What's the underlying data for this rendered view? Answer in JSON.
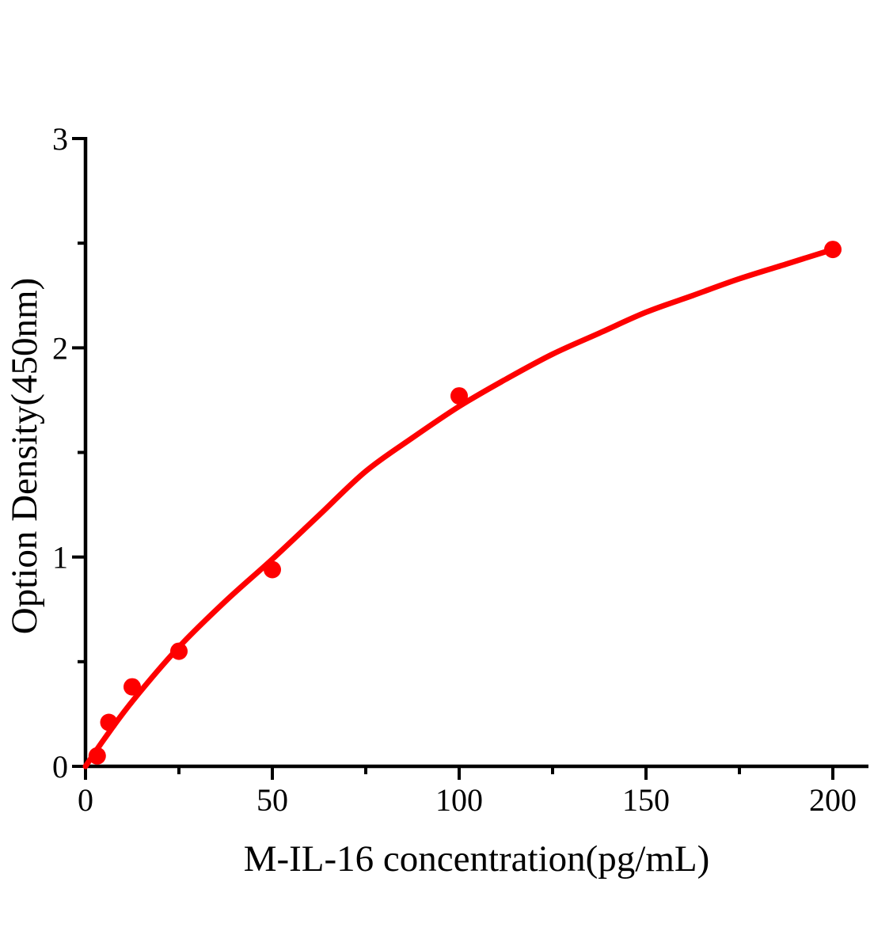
{
  "chart_data": {
    "type": "scatter",
    "title": "",
    "xlabel": "M-IL-16 concentration(pg/mL)",
    "ylabel": "Option Density(450nm)",
    "xlim": [
      0,
      209.5
    ],
    "ylim": [
      0,
      3
    ],
    "x_major_ticks": [
      0,
      50,
      100,
      150,
      200
    ],
    "x_minor_ticks": [
      25,
      75,
      125,
      175
    ],
    "y_major_ticks": [
      0,
      1,
      2,
      3
    ],
    "y_minor_ticks": [
      0.5,
      1.5,
      2.5
    ],
    "grid": false,
    "legend": false,
    "points": {
      "x": [
        3.125,
        6.25,
        12.5,
        25,
        50,
        100,
        200
      ],
      "y": [
        0.05,
        0.21,
        0.38,
        0.55,
        0.94,
        1.77,
        2.47
      ]
    },
    "fit_curve": {
      "x": [
        0,
        5,
        12.5,
        25,
        37.5,
        50,
        62.5,
        75,
        87.5,
        100,
        112.5,
        125,
        137.5,
        150,
        162.5,
        175,
        187.5,
        200
      ],
      "y": [
        0.0,
        0.13,
        0.31,
        0.57,
        0.79,
        0.99,
        1.2,
        1.41,
        1.57,
        1.72,
        1.85,
        1.97,
        2.07,
        2.17,
        2.25,
        2.33,
        2.4,
        2.47
      ]
    },
    "colors": {
      "marker": "#fe0000",
      "line": "#fe0000",
      "axis": "#000000",
      "background": "#ffffff"
    }
  }
}
